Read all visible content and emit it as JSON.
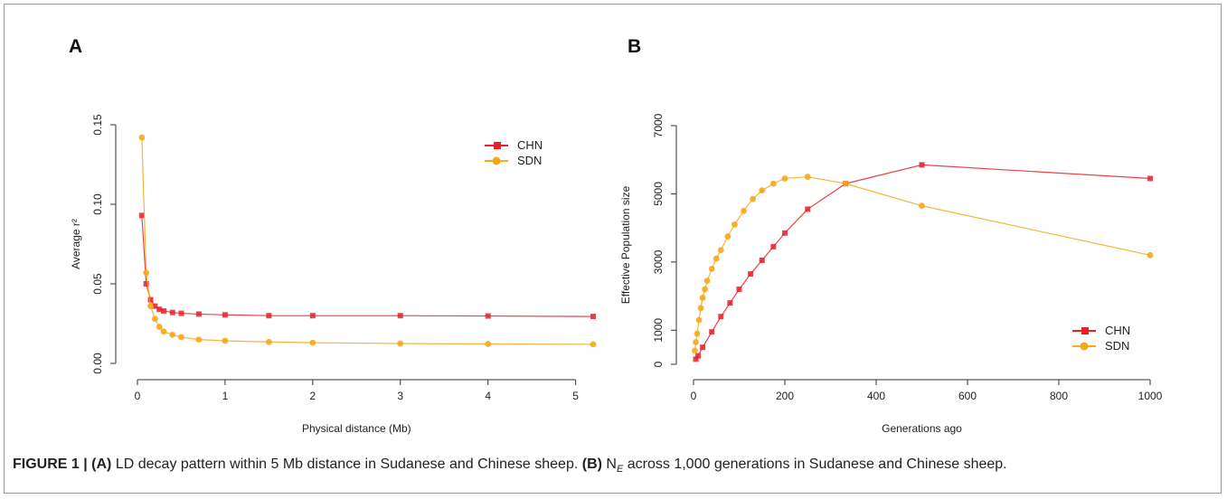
{
  "panels": [
    {
      "letter": "A"
    },
    {
      "letter": "B"
    }
  ],
  "caption": {
    "figure_label": "FIGURE 1 |",
    "part_a_label": "(A)",
    "part_a_text": "LD decay pattern within 5 Mb distance in Sudanese and Chinese sheep.",
    "part_b_label": "(B)",
    "part_b_text_1": "N",
    "part_b_sub": "E",
    "part_b_text_2": "across 1,000 generations in Sudanese and Chinese sheep."
  },
  "colors": {
    "CHN": "#e8202a",
    "SDN": "#f5a81c",
    "axis": "#333333"
  },
  "chart_data": [
    {
      "type": "line",
      "xlabel": "Physical distance (Mb)",
      "ylabel": "Average r²",
      "xlim": [
        0,
        5.2
      ],
      "ylim": [
        0,
        0.15
      ],
      "xticks": [
        0,
        1,
        2,
        3,
        4,
        5
      ],
      "yticks": [
        0.0,
        0.05,
        0.1,
        0.15
      ],
      "ytick_labels": [
        "0.00",
        "0.05",
        "0.10",
        "0.15"
      ],
      "legend_position": "top-right",
      "series": [
        {
          "name": "CHN",
          "x": [
            0.05,
            0.1,
            0.15,
            0.2,
            0.25,
            0.3,
            0.4,
            0.5,
            0.7,
            1.0,
            1.5,
            2.0,
            3.0,
            4.0,
            5.2
          ],
          "y": [
            0.093,
            0.05,
            0.04,
            0.036,
            0.034,
            0.033,
            0.032,
            0.0315,
            0.031,
            0.0305,
            0.03,
            0.03,
            0.03,
            0.0298,
            0.0295
          ]
        },
        {
          "name": "SDN",
          "x": [
            0.05,
            0.1,
            0.15,
            0.2,
            0.25,
            0.3,
            0.4,
            0.5,
            0.7,
            1.0,
            1.5,
            2.0,
            3.0,
            4.0,
            5.2
          ],
          "y": [
            0.142,
            0.057,
            0.036,
            0.028,
            0.023,
            0.02,
            0.018,
            0.0165,
            0.015,
            0.0142,
            0.0135,
            0.013,
            0.0125,
            0.0122,
            0.012
          ]
        }
      ]
    },
    {
      "type": "line",
      "xlabel": "Generations ago",
      "ylabel": "Effective Population size",
      "xlim": [
        0,
        1000
      ],
      "ylim": [
        0,
        7000
      ],
      "xticks": [
        0,
        200,
        400,
        600,
        800,
        1000
      ],
      "yticks": [
        0,
        1000,
        3000,
        5000,
        7000
      ],
      "legend_position": "bottom-right",
      "series": [
        {
          "name": "CHN",
          "x": [
            5,
            10,
            20,
            40,
            60,
            80,
            100,
            125,
            150,
            175,
            200,
            250,
            333,
            500,
            1000
          ],
          "y": [
            150,
            250,
            500,
            950,
            1400,
            1800,
            2200,
            2650,
            3050,
            3450,
            3850,
            4550,
            5300,
            5850,
            5450
          ]
        },
        {
          "name": "SDN",
          "x": [
            3,
            5,
            8,
            12,
            16,
            20,
            25,
            30,
            40,
            50,
            60,
            75,
            90,
            110,
            130,
            150,
            175,
            200,
            250,
            333,
            500,
            1000
          ],
          "y": [
            400,
            650,
            900,
            1300,
            1650,
            1950,
            2200,
            2450,
            2800,
            3100,
            3350,
            3750,
            4100,
            4500,
            4850,
            5100,
            5300,
            5450,
            5500,
            5300,
            4650,
            3200
          ]
        }
      ]
    }
  ]
}
